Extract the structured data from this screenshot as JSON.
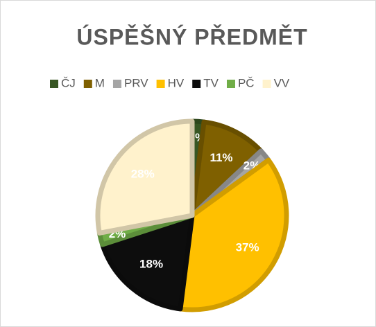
{
  "chart_data": {
    "type": "pie",
    "title": "ÚSPĚŠNÝ PŘEDMĚT",
    "categories": [
      "ČJ",
      "M",
      "PRV",
      "HV",
      "TV",
      "PČ",
      "VV"
    ],
    "values": [
      2,
      11,
      2,
      37,
      18,
      2,
      28
    ],
    "value_labels": [
      "2%",
      "11%",
      "2%",
      "37%",
      "18%",
      "2%",
      "28%"
    ],
    "colors": [
      "#375623",
      "#7f6000",
      "#a5a5a5",
      "#ffc000",
      "#0d0d0d",
      "#70ad47",
      "#fff2cc"
    ],
    "legend": "top"
  }
}
